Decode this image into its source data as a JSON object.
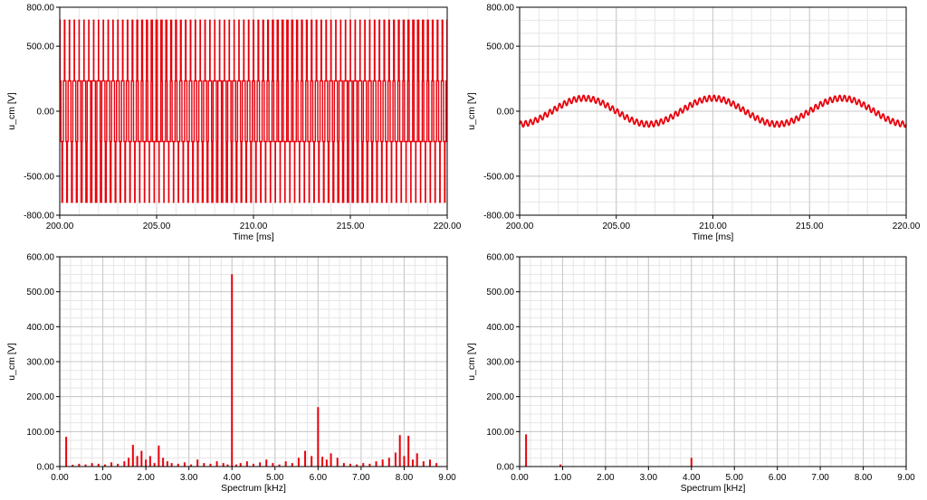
{
  "colors": {
    "trace": "#e8000b",
    "grid_major": "#c8c8c8",
    "grid_minor": "#e6e6e6",
    "axis": "#000000"
  },
  "chart_data": [
    {
      "id": "time-left",
      "type": "line",
      "xlabel": "Time [ms]",
      "ylabel": "u_cm [V]",
      "xlim": [
        200,
        220
      ],
      "ylim": [
        -800,
        800
      ],
      "xticks": [
        "200.00",
        "205.00",
        "210.00",
        "215.00",
        "220.00"
      ],
      "yticks": [
        "-800.00",
        "-500.00",
        "0.00",
        "500.00",
        "800.00"
      ],
      "ytick_values": [
        -800,
        -500,
        0,
        500,
        800
      ],
      "grid": true,
      "signal": {
        "kind": "switching",
        "levels": [
          -700,
          -233,
          233,
          700
        ],
        "carrier_kHz": 4,
        "fundamental_Hz": 50,
        "amplitude": 700
      }
    },
    {
      "id": "time-right",
      "type": "line",
      "xlabel": "Time [ms]",
      "ylabel": "u_cm [V]",
      "xlim": [
        200,
        220
      ],
      "ylim": [
        -800,
        800
      ],
      "xticks": [
        "200.00",
        "205.00",
        "210.00",
        "215.00",
        "220.00"
      ],
      "yticks": [
        "-800.00",
        "-500.00",
        "0.00",
        "500.00",
        "800.00"
      ],
      "ytick_values": [
        -800,
        -500,
        0,
        500,
        800
      ],
      "grid": true,
      "signal": {
        "kind": "filtered",
        "low_freq_amplitude": 100,
        "low_freq_Hz": 150,
        "ripple_amplitude": 22,
        "ripple_kHz": 4
      }
    },
    {
      "id": "spectrum-left",
      "type": "bar",
      "xlabel": "Spectrum [kHz]",
      "ylabel": "u_cm [V]",
      "xlim": [
        0,
        9
      ],
      "ylim": [
        0,
        600
      ],
      "xticks": [
        "0.00",
        "1.00",
        "2.00",
        "3.00",
        "4.00",
        "5.00",
        "6.00",
        "7.00",
        "8.00",
        "9.00"
      ],
      "xtick_values": [
        0,
        1,
        2,
        3,
        4,
        5,
        6,
        7,
        8,
        9
      ],
      "yticks": [
        "0.00",
        "100.00",
        "200.00",
        "300.00",
        "400.00",
        "500.00",
        "600.00"
      ],
      "ytick_values": [
        0,
        100,
        200,
        300,
        400,
        500,
        600
      ],
      "grid": true,
      "x": [
        0.15,
        0.3,
        0.45,
        0.6,
        0.75,
        0.9,
        1.05,
        1.2,
        1.35,
        1.5,
        1.6,
        1.7,
        1.8,
        1.9,
        2.0,
        2.1,
        2.2,
        2.3,
        2.4,
        2.5,
        2.6,
        2.75,
        2.9,
        3.05,
        3.2,
        3.35,
        3.5,
        3.65,
        3.8,
        3.9,
        4.0,
        4.1,
        4.2,
        4.35,
        4.5,
        4.65,
        4.8,
        4.95,
        5.1,
        5.25,
        5.4,
        5.55,
        5.7,
        5.85,
        6.0,
        6.1,
        6.2,
        6.3,
        6.45,
        6.6,
        6.75,
        6.9,
        7.05,
        7.2,
        7.35,
        7.5,
        7.65,
        7.8,
        7.9,
        8.0,
        8.1,
        8.2,
        8.3,
        8.45,
        8.6,
        8.75
      ],
      "values": [
        85,
        5,
        8,
        6,
        10,
        8,
        6,
        12,
        8,
        15,
        25,
        62,
        30,
        45,
        20,
        30,
        10,
        60,
        25,
        15,
        10,
        8,
        12,
        6,
        20,
        10,
        8,
        15,
        10,
        6,
        550,
        6,
        10,
        15,
        8,
        12,
        20,
        10,
        6,
        15,
        10,
        25,
        45,
        30,
        170,
        28,
        20,
        38,
        25,
        10,
        8,
        6,
        10,
        8,
        15,
        20,
        25,
        40,
        90,
        30,
        88,
        20,
        38,
        15,
        20,
        10
      ]
    },
    {
      "id": "spectrum-right",
      "type": "bar",
      "xlabel": "Spectrum [kHz]",
      "ylabel": "u_cm [V]",
      "xlim": [
        0,
        9
      ],
      "ylim": [
        0,
        600
      ],
      "xticks": [
        "0.00",
        "1.00",
        "2.00",
        "3.00",
        "4.00",
        "5.00",
        "6.00",
        "7.00",
        "8.00",
        "9.00"
      ],
      "xtick_values": [
        0,
        1,
        2,
        3,
        4,
        5,
        6,
        7,
        8,
        9
      ],
      "yticks": [
        "0.00",
        "100.00",
        "200.00",
        "300.00",
        "400.00",
        "500.00",
        "600.00"
      ],
      "ytick_values": [
        0,
        100,
        200,
        300,
        400,
        500,
        600
      ],
      "grid": true,
      "x": [
        0.15,
        0.95,
        4.0
      ],
      "values": [
        92,
        6,
        25
      ]
    }
  ]
}
